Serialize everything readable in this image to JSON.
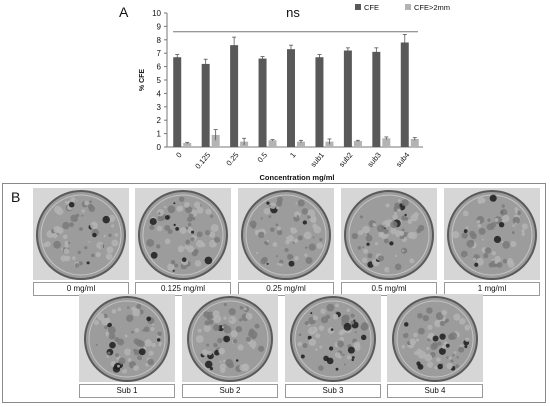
{
  "panel_a": {
    "letter": "A",
    "significance": "ns"
  },
  "panel_b": {
    "letter": "B",
    "dishes_row1": [
      {
        "label": "0 mg/ml"
      },
      {
        "label": "0.125 mg/ml"
      },
      {
        "label": "0.25 mg/ml"
      },
      {
        "label": "0.5 mg/ml"
      },
      {
        "label": "1 mg/ml"
      }
    ],
    "dishes_row2": [
      {
        "label": "Sub 1"
      },
      {
        "label": "Sub 2"
      },
      {
        "label": "Sub 3"
      },
      {
        "label": "Sub 4"
      }
    ]
  },
  "chart_data": {
    "type": "bar",
    "title": "",
    "xlabel": "Concentration mg/ml",
    "ylabel": "% CFE",
    "categories": [
      "0",
      "0.125",
      "0.25",
      "0.5",
      "1",
      "sub1",
      "sub2",
      "sub3",
      "sub4"
    ],
    "series": [
      {
        "name": "CFE",
        "color": "#595959",
        "values": [
          6.7,
          6.2,
          7.6,
          6.6,
          7.3,
          6.7,
          7.2,
          7.1,
          7.8
        ],
        "errors": [
          0.2,
          0.35,
          0.6,
          0.15,
          0.3,
          0.2,
          0.2,
          0.3,
          0.6
        ]
      },
      {
        "name": "CFE>2mm",
        "color": "#b3b3b3",
        "values": [
          0.3,
          0.9,
          0.4,
          0.5,
          0.4,
          0.4,
          0.45,
          0.65,
          0.6
        ],
        "errors": [
          0.05,
          0.4,
          0.25,
          0.05,
          0.1,
          0.2,
          0.05,
          0.1,
          0.1
        ]
      }
    ],
    "ylim": [
      0,
      10
    ],
    "yticks": [
      0,
      1,
      2,
      3,
      4,
      5,
      6,
      7,
      8,
      9,
      10
    ],
    "significance_bracket_y": 8.6,
    "legend_position": "top-right",
    "grid": false
  }
}
